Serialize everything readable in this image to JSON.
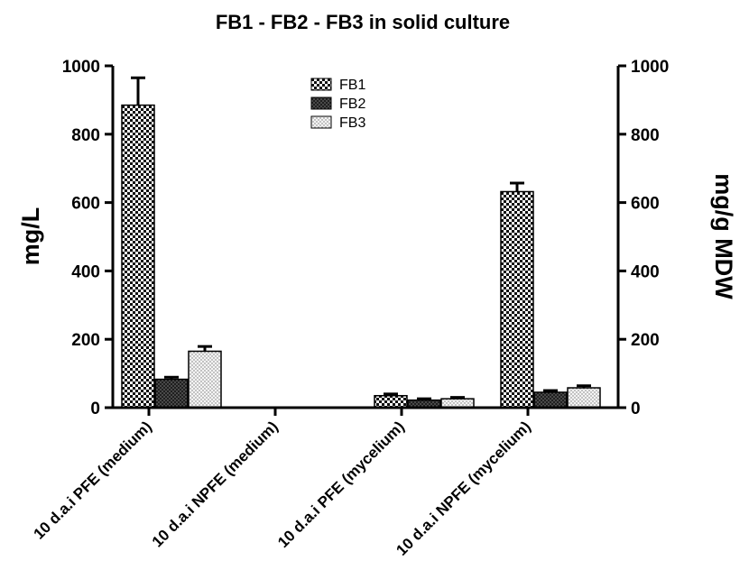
{
  "chart_data": {
    "type": "bar",
    "title": "FB1 - FB2 - FB3 in solid culture",
    "ylabel": "mg/L",
    "y2label": "mg/g MDW",
    "ylim": [
      0,
      1000
    ],
    "y2lim": [
      0,
      1000
    ],
    "yticks": [
      "0",
      "200",
      "400",
      "600",
      "800",
      "1000"
    ],
    "y2ticks": [
      "0",
      "200",
      "400",
      "600",
      "800",
      "1000"
    ],
    "categories": [
      "10 d.a.i  PFE  (medium)",
      "10 d.a.i NPFE (medium)",
      "10 d.a.i  PFE (mycelium)",
      "10 d.a.i  NPFE (mycelium)"
    ],
    "series": [
      {
        "name": "FB1",
        "values": [
          885,
          0,
          35,
          632
        ],
        "errors": [
          80,
          0,
          5,
          25
        ],
        "pattern": "checker"
      },
      {
        "name": "FB2",
        "values": [
          83,
          0,
          22,
          45
        ],
        "errors": [
          6,
          0,
          4,
          5
        ],
        "pattern": "crosshatch"
      },
      {
        "name": "FB3",
        "values": [
          165,
          0,
          26,
          58
        ],
        "errors": [
          14,
          0,
          4,
          6
        ],
        "pattern": "dots"
      }
    ],
    "legend_position": "top-center",
    "grid": false
  }
}
